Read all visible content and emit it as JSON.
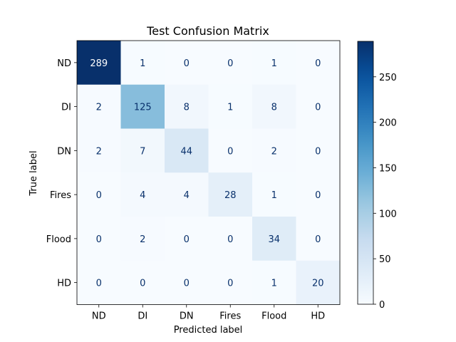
{
  "chart_data": {
    "type": "heatmap",
    "title": "Test Confusion Matrix",
    "xlabel": "Predicted label",
    "ylabel": "True label",
    "x_categories": [
      "ND",
      "DI",
      "DN",
      "Fires",
      "Flood",
      "HD"
    ],
    "y_categories": [
      "ND",
      "DI",
      "DN",
      "Fires",
      "Flood",
      "HD"
    ],
    "values": [
      [
        289,
        1,
        0,
        0,
        1,
        0
      ],
      [
        2,
        125,
        8,
        1,
        8,
        0
      ],
      [
        2,
        7,
        44,
        0,
        2,
        0
      ],
      [
        0,
        4,
        4,
        28,
        1,
        0
      ],
      [
        0,
        2,
        0,
        0,
        34,
        0
      ],
      [
        0,
        0,
        0,
        0,
        1,
        20
      ]
    ],
    "colorbar": {
      "colormap": "Blues",
      "range": [
        0,
        289
      ],
      "ticks": [
        0,
        50,
        100,
        150,
        200,
        250
      ]
    },
    "grid": false
  }
}
